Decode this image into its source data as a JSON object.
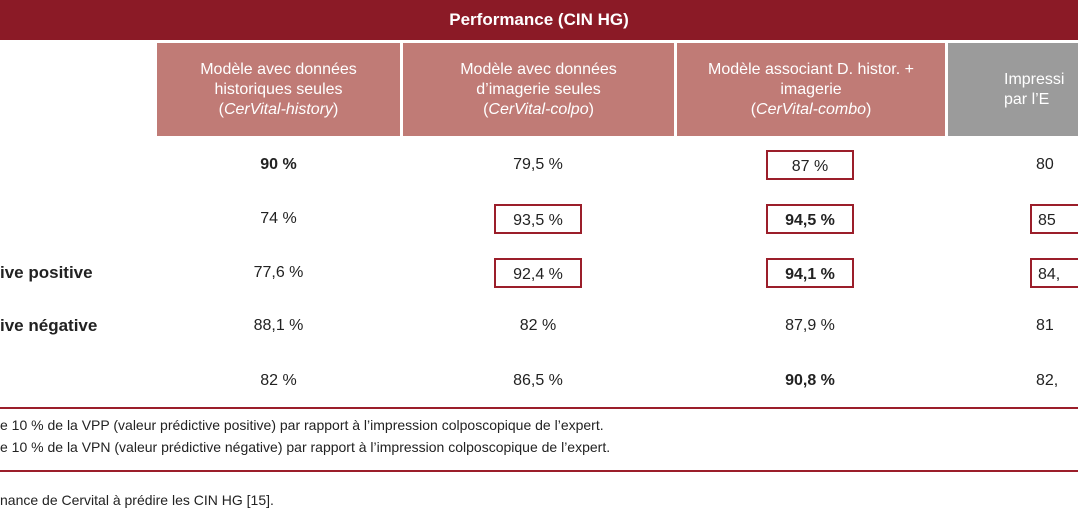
{
  "table": {
    "title": "Performance (CIN HG)",
    "headers": [
      {
        "line1": "Modèle avec données",
        "line2": "historiques seules",
        "sub": "CerVital-history",
        "open": "(",
        "close": ")"
      },
      {
        "line1": "Modèle avec données",
        "line2": "d’imagerie seules",
        "sub": "CerVital-colpo",
        "open": "(",
        "close": ")"
      },
      {
        "line1": "Modèle associant D. histor. +",
        "line2": "imagerie",
        "sub": "CerVital-combo",
        "open": "(",
        "close": ")"
      },
      {
        "line1": "Impressi",
        "line2": "par l’E"
      }
    ],
    "row_labels": [
      "",
      "",
      "ive positive",
      "ive négative",
      ""
    ],
    "rows": [
      [
        "90 %",
        "79,5 %",
        "87 %",
        "80"
      ],
      [
        "74 %",
        "93,5 %",
        "94,5 %",
        "85"
      ],
      [
        "77,6 %",
        "92,4 %",
        "94,1 %",
        "84,"
      ],
      [
        "88,1 %",
        "82 %",
        "87,9 %",
        "81"
      ],
      [
        "82 %",
        "86,5 %",
        "90,8 %",
        "82,"
      ]
    ]
  },
  "notes": [
    "e 10 % de la VPP (valeur prédictive positive) par rapport à l’impression colposcopique de l’expert.",
    "e 10 % de la VPN (valeur prédictive négative) par rapport à l’impression colposcopique de l’expert."
  ],
  "caption": "nance de Cervital à prédire les CIN HG [15]."
}
